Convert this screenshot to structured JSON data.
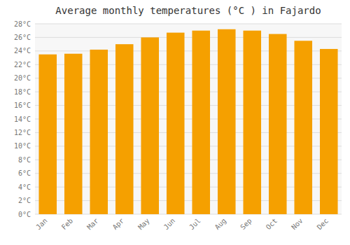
{
  "chart_data": {
    "type": "bar",
    "title": "Average monthly temperatures (°C ) in Fajardo",
    "categories": [
      "Jan",
      "Feb",
      "Mar",
      "Apr",
      "May",
      "Jun",
      "Jul",
      "Aug",
      "Sep",
      "Oct",
      "Nov",
      "Dec"
    ],
    "values": [
      23.5,
      23.6,
      24.2,
      25.0,
      26.0,
      26.7,
      27.0,
      27.2,
      27.0,
      26.5,
      25.5,
      24.3
    ],
    "color": "#F5A000",
    "ylim": [
      0,
      28
    ],
    "yticks": [
      {
        "value": 0,
        "label": "0°C"
      },
      {
        "value": 2,
        "label": "2°C"
      },
      {
        "value": 4,
        "label": "4°C"
      },
      {
        "value": 6,
        "label": "6°C"
      },
      {
        "value": 8,
        "label": "8°C"
      },
      {
        "value": 10,
        "label": "10°C"
      },
      {
        "value": 12,
        "label": "12°C"
      },
      {
        "value": 14,
        "label": "14°C"
      },
      {
        "value": 16,
        "label": "16°C"
      },
      {
        "value": 18,
        "label": "18°C"
      },
      {
        "value": 20,
        "label": "20°C"
      },
      {
        "value": 22,
        "label": "22°C"
      },
      {
        "value": 24,
        "label": "24°C"
      },
      {
        "value": 26,
        "label": "26°C"
      },
      {
        "value": 28,
        "label": "28°C"
      }
    ],
    "grid": true
  }
}
